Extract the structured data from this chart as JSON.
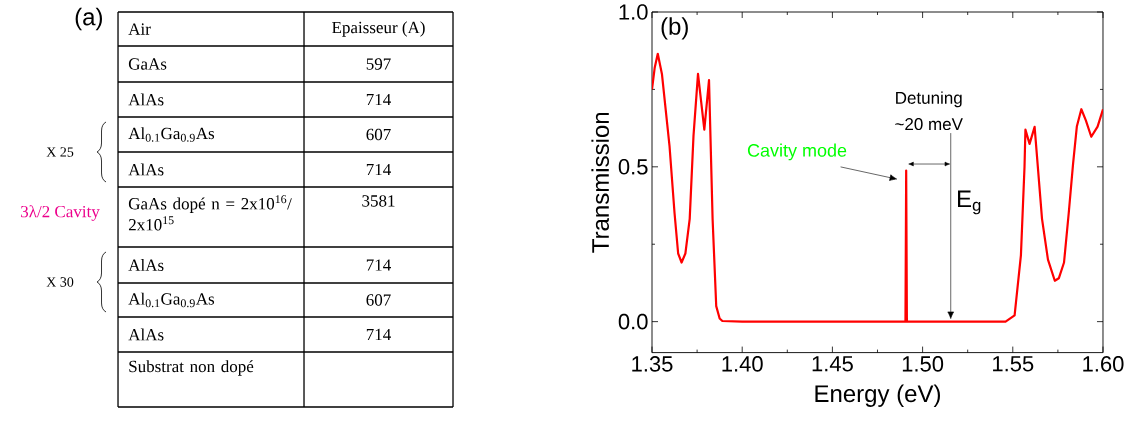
{
  "chart_data": [
    {
      "type": "other",
      "title": "(a)",
      "categories": [
        "Air",
        "GaAs",
        "AlAs",
        "Al$_{0.1}$Ga$_{0.9}$As",
        "AlAs",
        "GaAs dopé n = 2x10$^{16}$/ 2x10$^{15}$",
        "AlAs",
        "Al$_{0.1}$Ga$_{0.9}$As",
        "AlAs",
        "Substrat non dopé"
      ],
      "values": [
        null,
        597,
        714,
        607,
        714,
        3581,
        714,
        607,
        714,
        null
      ],
      "data_labels": true,
      "annotations": [
        "Epaisseur (A)",
        "X 25",
        "3λ/2 Cavity",
        "X 30"
      ]
    },
    {
      "type": "line",
      "title": "(b)",
      "xlabel": "Energy (eV)",
      "ylabel": "Transmission",
      "xlim": [
        1.35,
        1.6
      ],
      "ylim": [
        -0.1,
        1.0
      ],
      "xticks": [
        {
          "value": 1.35,
          "label": "1.35"
        },
        {
          "value": 1.375,
          "label": null
        },
        {
          "value": 1.4,
          "label": "1.40"
        },
        {
          "value": 1.425,
          "label": null
        },
        {
          "value": 1.45,
          "label": "1.45"
        },
        {
          "value": 1.475,
          "label": null
        },
        {
          "value": 1.5,
          "label": "1.50"
        },
        {
          "value": 1.525,
          "label": null
        },
        {
          "value": 1.55,
          "label": "1.55"
        },
        {
          "value": 1.575,
          "label": null
        },
        {
          "value": 1.6,
          "label": "1.60"
        }
      ],
      "yticks": [
        {
          "value": 0,
          "label": "0.0"
        },
        {
          "value": 0.25,
          "label": null
        },
        {
          "value": 0.5,
          "label": "0.5"
        },
        {
          "value": 0.75,
          "label": null
        },
        {
          "value": 1.0,
          "label": "1.0"
        }
      ],
      "series": [
        {
          "color": "#ff0000",
          "x": [
            1.35,
            1.3515,
            1.3532,
            1.3555,
            1.3597,
            1.3625,
            1.3645,
            1.3664,
            1.3685,
            1.3709,
            1.373,
            1.3755,
            1.379,
            1.3816,
            1.3836,
            1.3856,
            1.3875,
            1.389,
            1.4,
            1.4905,
            1.4909,
            1.4913,
            1.546,
            1.551,
            1.5545,
            1.5565,
            1.557,
            1.5593,
            1.5621,
            1.5662,
            1.5695,
            1.5733,
            1.5755,
            1.5784,
            1.581,
            1.5834,
            1.5855,
            1.588,
            1.5905,
            1.5935,
            1.597,
            1.6
          ],
          "values": [
            0.75,
            0.82,
            0.865,
            0.8,
            0.568,
            0.35,
            0.22,
            0.191,
            0.22,
            0.332,
            0.6,
            0.8,
            0.62,
            0.78,
            0.33,
            0.05,
            0.01,
            0.002,
            0,
            0,
            0.488,
            0,
            0,
            0.02,
            0.214,
            0.5,
            0.62,
            0.574,
            0.629,
            0.332,
            0.2,
            0.132,
            0.14,
            0.191,
            0.35,
            0.509,
            0.63,
            0.686,
            0.65,
            0.597,
            0.63,
            0.686
          ]
        }
      ],
      "annotations": [
        "Cavity mode",
        "Detuning",
        "~20 meV",
        "E$_{g}$"
      ]
    }
  ]
}
